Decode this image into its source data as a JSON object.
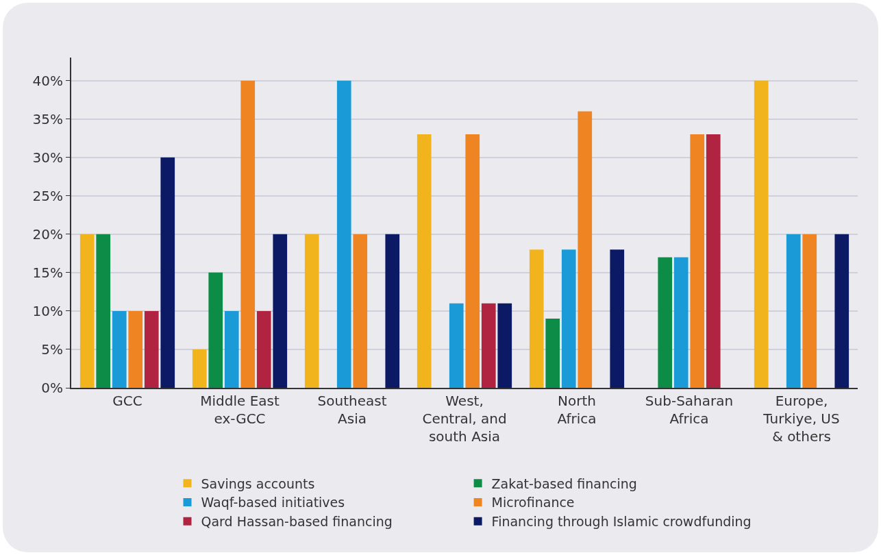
{
  "chart_data": {
    "type": "bar",
    "categories": [
      "GCC",
      "Middle East\nex-GCC",
      "Southeast\nAsia",
      "West,\nCentral, and\nsouth Asia",
      "North\nAfrica",
      "Sub-Saharan\nAfrica",
      "Europe,\nTurkiye, US\n& others"
    ],
    "series": [
      {
        "name": "Savings accounts",
        "color": "#f2b41c",
        "values": [
          20,
          5,
          20,
          33,
          18,
          0,
          40
        ]
      },
      {
        "name": "Zakat-based financing",
        "color": "#0c8c47",
        "values": [
          20,
          15,
          0,
          0,
          9,
          17,
          0
        ]
      },
      {
        "name": "Waqf-based initiatives",
        "color": "#1a9bd7",
        "values": [
          10,
          10,
          40,
          11,
          18,
          17,
          20
        ]
      },
      {
        "name": "Microfinance",
        "color": "#ef8522",
        "values": [
          10,
          40,
          20,
          33,
          36,
          33,
          20
        ]
      },
      {
        "name": "Qard Hassan-based financing",
        "color": "#b02441",
        "values": [
          10,
          10,
          0,
          11,
          0,
          33,
          0
        ]
      },
      {
        "name": "Financing through Islamic crowdfunding",
        "color": "#0c1a66",
        "values": [
          30,
          20,
          20,
          11,
          18,
          0,
          20
        ]
      }
    ],
    "ylim": [
      0,
      43
    ],
    "yticks": [
      {
        "value": 0,
        "label": "0%"
      },
      {
        "value": 5,
        "label": "5%"
      },
      {
        "value": 10,
        "label": "10%"
      },
      {
        "value": 15,
        "label": "15%"
      },
      {
        "value": 20,
        "label": "20%"
      },
      {
        "value": 25,
        "label": "25%"
      },
      {
        "value": 30,
        "label": "30%"
      },
      {
        "value": 35,
        "label": "35%"
      },
      {
        "value": 40,
        "label": "40%"
      }
    ],
    "grid": "y",
    "legend": "bottom"
  }
}
